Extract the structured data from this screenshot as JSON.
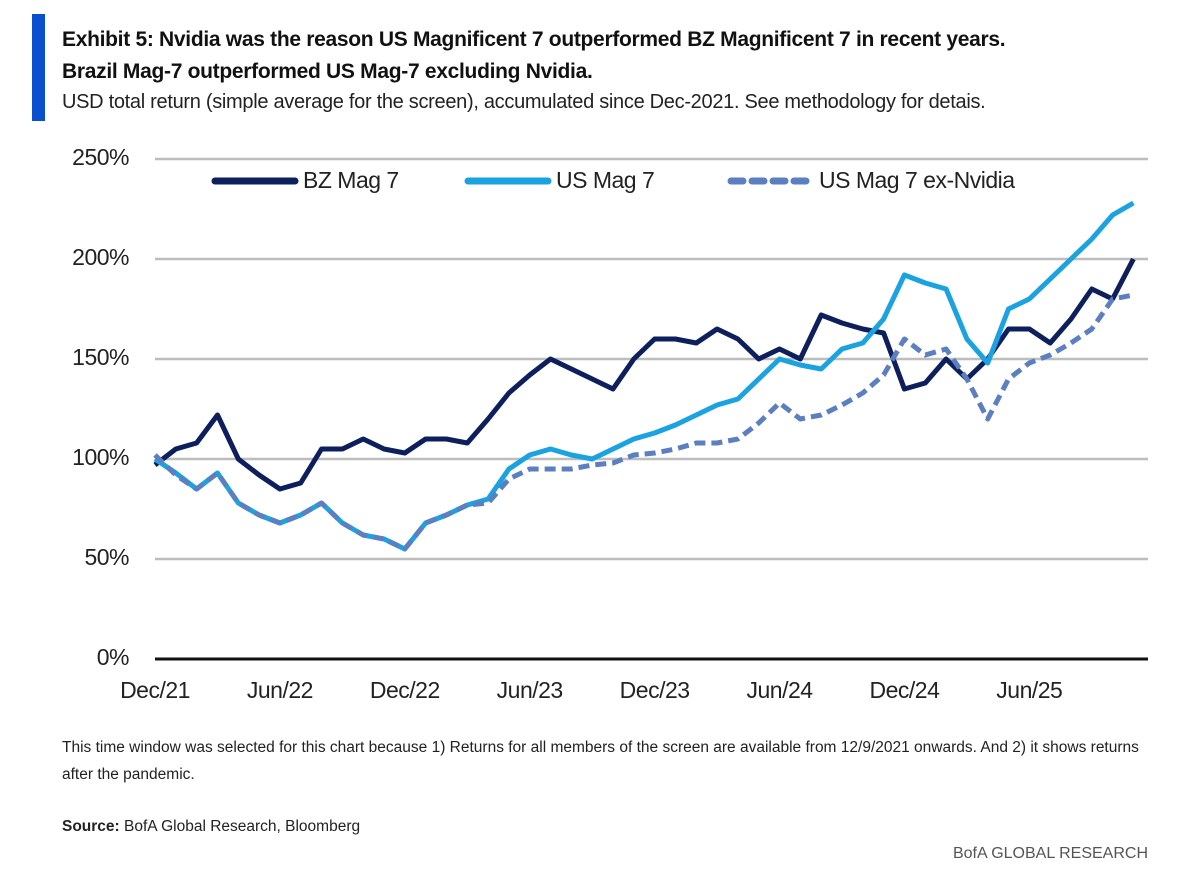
{
  "chart_data": {
    "type": "line",
    "title": [
      "Exhibit 5: Nvidia was the reason US Magnificent 7 outperformed BZ Magnificent 7 in recent years.",
      "Brazil Mag-7 outperformed US Mag-7 excluding Nvidia."
    ],
    "subtitle": "USD total return (simple average for the screen), accumulated since Dec-2021. See methodology for detais.",
    "categories": [
      "Dec/21",
      null,
      null,
      null,
      null,
      null,
      "Jun/22",
      null,
      null,
      null,
      null,
      null,
      "Dec/22",
      null,
      null,
      null,
      null,
      null,
      "Jun/23",
      null,
      null,
      null,
      null,
      null,
      "Dec/23",
      null,
      null,
      null,
      null,
      null,
      "Jun/24",
      null,
      null,
      null,
      null,
      null,
      "Dec/24",
      null,
      null,
      null,
      null,
      null,
      "Jun/25",
      null,
      null,
      null,
      null,
      null
    ],
    "series": [
      {
        "name": "BZ Mag 7",
        "color": "#0d1f5c",
        "dashed": false,
        "values": [
          97,
          105,
          108,
          122,
          100,
          92,
          85,
          88,
          105,
          105,
          110,
          105,
          103,
          110,
          110,
          108,
          120,
          133,
          142,
          150,
          145,
          140,
          135,
          150,
          160,
          160,
          158,
          165,
          160,
          150,
          155,
          150,
          172,
          168,
          165,
          163,
          135,
          138,
          150,
          140,
          150,
          165,
          165,
          158,
          170,
          185,
          180,
          200
        ]
      },
      {
        "name": "US Mag 7",
        "color": "#1aa3e0",
        "dashed": false,
        "values": [
          100,
          93,
          85,
          93,
          78,
          72,
          68,
          72,
          78,
          68,
          62,
          60,
          55,
          68,
          72,
          77,
          80,
          95,
          102,
          105,
          102,
          100,
          105,
          110,
          113,
          117,
          122,
          127,
          130,
          140,
          150,
          147,
          145,
          155,
          158,
          170,
          192,
          188,
          185,
          160,
          148,
          175,
          180,
          190,
          200,
          210,
          222,
          228
        ]
      },
      {
        "name": "US Mag 7 ex-Nvidia",
        "color": "#5b7fc0",
        "dashed": true,
        "values": [
          102,
          92,
          85,
          93,
          78,
          72,
          68,
          72,
          78,
          68,
          62,
          60,
          55,
          68,
          72,
          77,
          78,
          90,
          95,
          95,
          95,
          97,
          98,
          102,
          103,
          105,
          108,
          108,
          110,
          118,
          128,
          120,
          122,
          127,
          133,
          142,
          160,
          152,
          155,
          140,
          120,
          140,
          148,
          152,
          158,
          165,
          180,
          182
        ]
      }
    ],
    "ylim": [
      0,
      250
    ],
    "yticks": [
      {
        "value": 0,
        "label": "0%"
      },
      {
        "value": 50,
        "label": "50%"
      },
      {
        "value": 100,
        "label": "100%"
      },
      {
        "value": 150,
        "label": "150%"
      },
      {
        "value": 200,
        "label": "200%"
      },
      {
        "value": 250,
        "label": "250%"
      }
    ],
    "grid": true,
    "legend": "top",
    "note": "This time window was selected for this chart because 1) Returns for all members of the screen are available from 12/9/2021 onwards. And 2) it shows returns after the pandemic.",
    "source_label": "Source:",
    "source": "BofA Global Research, Bloomberg",
    "footer": "BofA GLOBAL RESEARCH"
  }
}
